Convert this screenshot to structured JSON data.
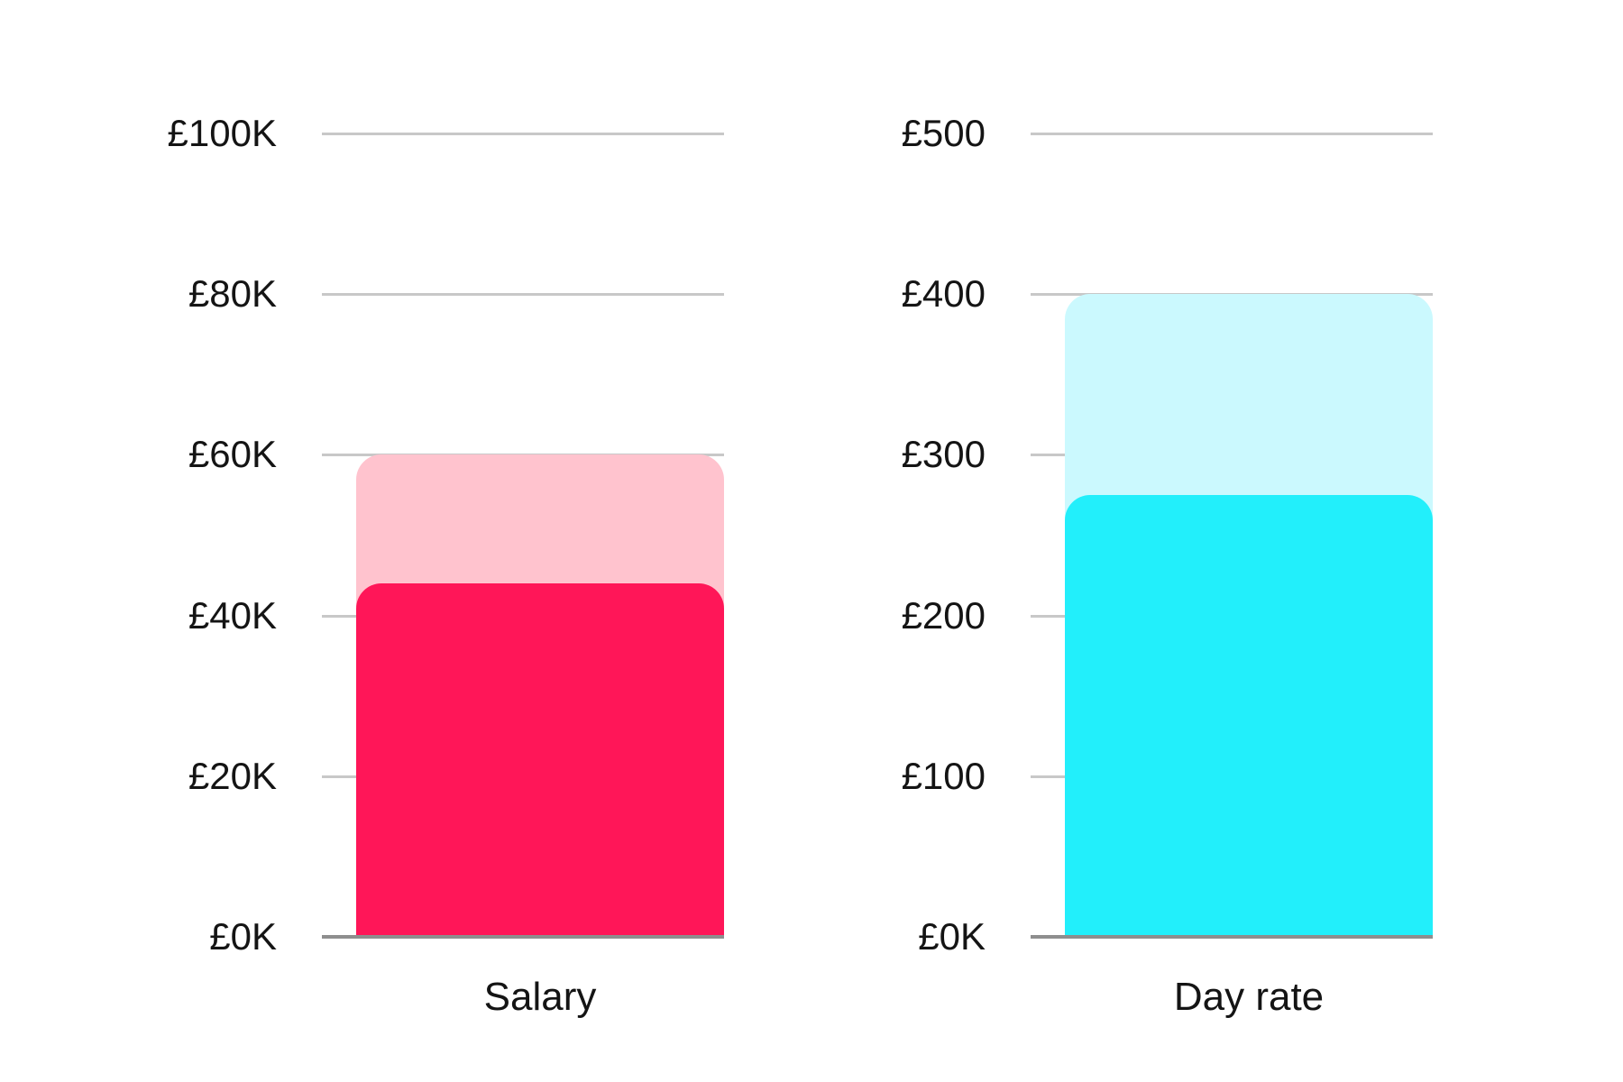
{
  "style": {
    "background": "#ffffff",
    "text_color": "#141414",
    "gridline_color": "#c8c8c8",
    "axis_line_color": "#8e8e8e"
  },
  "chart_data": [
    {
      "name": "salary-chart",
      "type": "bar",
      "categories": [
        "Salary"
      ],
      "series": [
        {
          "name": "light",
          "values": [
            60000
          ],
          "color": "#FFC3CE"
        },
        {
          "name": "dark",
          "values": [
            44000
          ],
          "color": "#FF1658"
        }
      ],
      "title": "",
      "xlabel": "Salary",
      "ylabel": "",
      "ylim": [
        0,
        100000
      ],
      "ytick_values": [
        0,
        20000,
        40000,
        60000,
        80000,
        100000
      ],
      "ytick_labels": [
        "£0K",
        "£20K",
        "£40K",
        "£60K",
        "£80K",
        "£100K"
      ],
      "grid": true,
      "legend": false
    },
    {
      "name": "day-rate-chart",
      "type": "bar",
      "categories": [
        "Day rate"
      ],
      "series": [
        {
          "name": "light",
          "values": [
            400
          ],
          "color": "#CBF9FE"
        },
        {
          "name": "dark",
          "values": [
            275
          ],
          "color": "#22EFFB"
        }
      ],
      "title": "",
      "xlabel": "Day rate",
      "ylabel": "",
      "ylim": [
        0,
        500
      ],
      "ytick_values": [
        0,
        100,
        200,
        300,
        400,
        500
      ],
      "ytick_labels": [
        "£0K",
        "£100",
        "£200",
        "£300",
        "£400",
        "£500"
      ],
      "grid": true,
      "legend": false
    }
  ]
}
